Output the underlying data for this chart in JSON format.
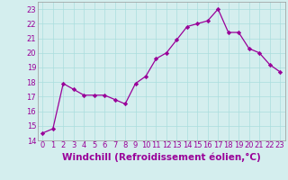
{
  "x": [
    0,
    1,
    2,
    3,
    4,
    5,
    6,
    7,
    8,
    9,
    10,
    11,
    12,
    13,
    14,
    15,
    16,
    17,
    18,
    19,
    20,
    21,
    22,
    23
  ],
  "y": [
    14.5,
    14.8,
    17.9,
    17.5,
    17.1,
    17.1,
    17.1,
    16.8,
    16.5,
    17.9,
    18.4,
    19.6,
    20.0,
    20.9,
    21.8,
    22.0,
    22.2,
    23.0,
    21.4,
    21.4,
    20.3,
    20.0,
    19.2,
    18.7
  ],
  "line_color": "#990099",
  "marker": "D",
  "marker_size": 2.2,
  "line_width": 0.9,
  "xlabel": "Windchill (Refroidissement éolien,°C)",
  "xlim": [
    -0.5,
    23.5
  ],
  "ylim": [
    14,
    23.5
  ],
  "yticks": [
    14,
    15,
    16,
    17,
    18,
    19,
    20,
    21,
    22,
    23
  ],
  "xticks": [
    0,
    1,
    2,
    3,
    4,
    5,
    6,
    7,
    8,
    9,
    10,
    11,
    12,
    13,
    14,
    15,
    16,
    17,
    18,
    19,
    20,
    21,
    22,
    23
  ],
  "grid_color": "#aadddd",
  "bg_color": "#d4eeee",
  "tick_fontsize": 6.0,
  "xlabel_fontsize": 7.5
}
